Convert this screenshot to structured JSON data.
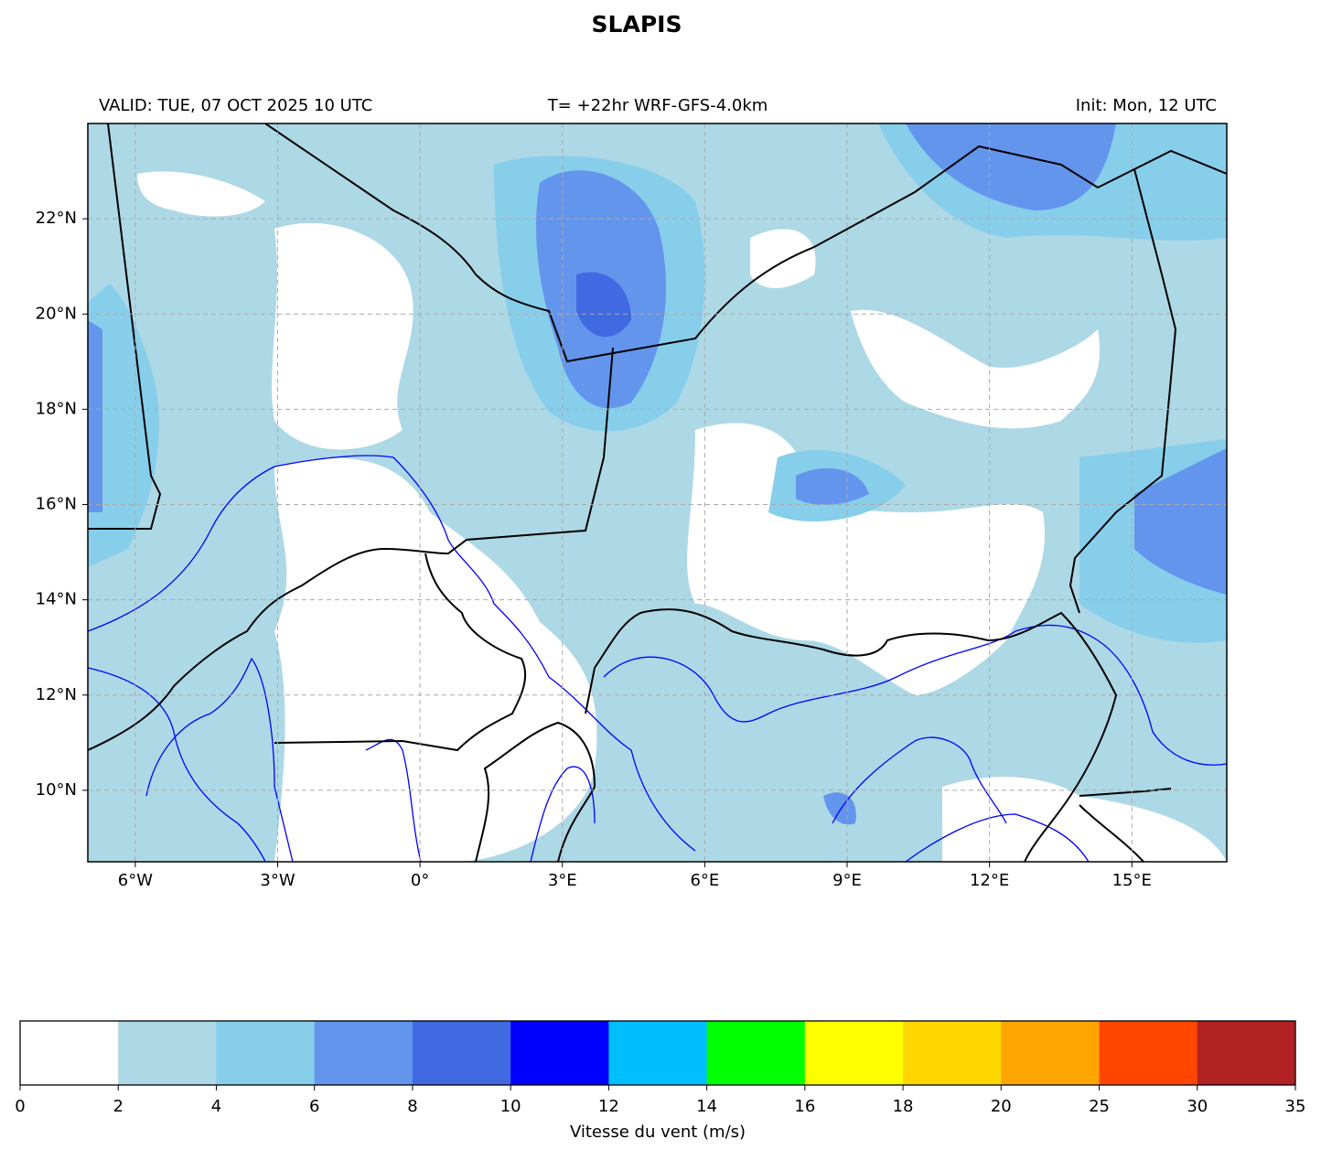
{
  "title": "SLAPIS",
  "subtitle_left": "VALID: TUE, 07 OCT 2025 10 UTC",
  "subtitle_center": "T= +22hr WRF-GFS-4.0km",
  "subtitle_right": "Init: Mon, 12 UTC",
  "map": {
    "lonlim": [
      -7,
      17
    ],
    "latlim": [
      8.5,
      24
    ],
    "lon_ticks": [
      {
        "value": -6,
        "label": "6°W"
      },
      {
        "value": -3,
        "label": "3°W"
      },
      {
        "value": 0,
        "label": "0°"
      },
      {
        "value": 3,
        "label": "3°E"
      },
      {
        "value": 6,
        "label": "6°E"
      },
      {
        "value": 9,
        "label": "9°E"
      },
      {
        "value": 12,
        "label": "12°E"
      },
      {
        "value": 15,
        "label": "15°E"
      }
    ],
    "lat_ticks": [
      {
        "value": 10,
        "label": "10°N"
      },
      {
        "value": 12,
        "label": "12°N"
      },
      {
        "value": 14,
        "label": "14°N"
      },
      {
        "value": 16,
        "label": "16°N"
      },
      {
        "value": 18,
        "label": "18°N"
      },
      {
        "value": 20,
        "label": "20°N"
      },
      {
        "value": 22,
        "label": "22°N"
      }
    ],
    "grid": true
  },
  "colorbar": {
    "label": "Vitesse du vent (m/s)",
    "bounds": [
      0,
      2,
      4,
      6,
      8,
      10,
      12,
      14,
      16,
      18,
      20,
      25,
      30,
      35
    ],
    "colors": [
      "#ffffff",
      "#add8e6",
      "#87ceeb",
      "#6495ed",
      "#4169e1",
      "#0000ff",
      "#00bfff",
      "#00ff00",
      "#ffff00",
      "#ffd700",
      "#ffa500",
      "#ff4500",
      "#b22222"
    ]
  }
}
